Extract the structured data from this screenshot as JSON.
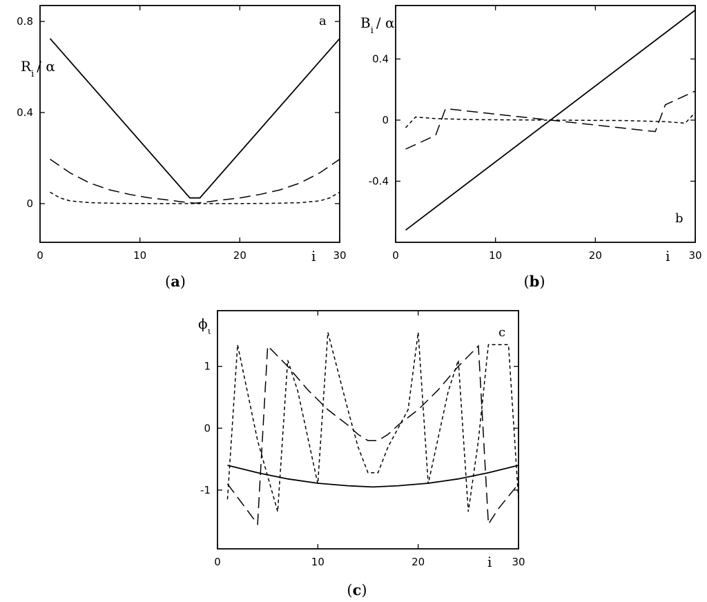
{
  "chart_data": [
    {
      "type": "line",
      "panel": "a",
      "caption": "(a)",
      "corner_label": "a",
      "ylabel": "R / α",
      "ylabel_sub": "i",
      "xlabel": "i",
      "xlim": [
        0,
        30
      ],
      "ylim": [
        -0.17,
        0.87
      ],
      "xticks": [
        0,
        10,
        20,
        30
      ],
      "xtick_labels": [
        "0",
        "10",
        "20",
        "30"
      ],
      "yticks": [
        0,
        0.4,
        0.8
      ],
      "ytick_labels": [
        "0",
        "0.4",
        "0.8"
      ],
      "series": [
        {
          "style": "solid",
          "x": [
            1,
            15,
            16,
            30
          ],
          "y": [
            0.725,
            0.025,
            0.025,
            0.725
          ]
        },
        {
          "style": "long-dash",
          "x": [
            1,
            3,
            5,
            7,
            9,
            11,
            13,
            14,
            15,
            15.5,
            16,
            17,
            18,
            20,
            22,
            24,
            26,
            28,
            30
          ],
          "y": [
            0.195,
            0.135,
            0.09,
            0.06,
            0.04,
            0.025,
            0.015,
            0.009,
            0.004,
            0.002,
            0.004,
            0.009,
            0.015,
            0.025,
            0.04,
            0.06,
            0.09,
            0.135,
            0.195
          ]
        },
        {
          "style": "short-dash",
          "x": [
            1,
            2,
            3,
            5,
            8,
            12,
            15.5,
            19,
            23,
            26,
            28,
            29,
            30
          ],
          "y": [
            0.05,
            0.025,
            0.012,
            0.004,
            0.001,
            0.0,
            0.0,
            0.0,
            0.001,
            0.004,
            0.012,
            0.025,
            0.05
          ]
        }
      ]
    },
    {
      "type": "line",
      "panel": "b",
      "caption": "(b)",
      "corner_label": "b",
      "ylabel": "B / α",
      "ylabel_sub": "i",
      "xlabel": "i",
      "xlim": [
        0,
        30
      ],
      "ylim": [
        -0.8,
        0.75
      ],
      "xticks": [
        0,
        10,
        20,
        30
      ],
      "xtick_labels": [
        "0",
        "10",
        "20",
        "30"
      ],
      "yticks": [
        -0.4,
        0,
        0.4
      ],
      "ytick_labels": [
        "-0.4",
        "0",
        "0.4"
      ],
      "series": [
        {
          "style": "solid",
          "x": [
            1,
            30
          ],
          "y": [
            -0.72,
            0.72
          ]
        },
        {
          "style": "long-dash",
          "x": [
            1,
            4,
            5,
            26,
            27,
            30
          ],
          "y": [
            -0.19,
            -0.1,
            0.075,
            -0.075,
            0.1,
            0.19
          ]
        },
        {
          "style": "short-dash",
          "x": [
            1,
            2,
            4,
            8,
            15.5,
            23,
            27,
            29,
            30
          ],
          "y": [
            -0.05,
            0.02,
            0.01,
            0.003,
            0.0,
            -0.003,
            -0.01,
            -0.02,
            0.05
          ]
        }
      ]
    },
    {
      "type": "line",
      "panel": "c",
      "caption": "(c)",
      "corner_label": "c",
      "ylabel": "ϕ",
      "ylabel_sub": "ι",
      "xlabel": "i",
      "xlim": [
        0,
        30
      ],
      "ylim": [
        -1.95,
        1.9
      ],
      "xticks": [
        0,
        10,
        20,
        30
      ],
      "xtick_labels": [
        "0",
        "10",
        "20",
        "30"
      ],
      "yticks": [
        -1,
        0,
        1
      ],
      "ytick_labels": [
        "-1",
        "0",
        "1"
      ],
      "series": [
        {
          "style": "solid",
          "x": [
            1,
            4,
            7,
            10,
            13,
            15.5,
            18,
            21,
            24,
            27,
            30
          ],
          "y": [
            -0.6,
            -0.72,
            -0.82,
            -0.89,
            -0.93,
            -0.95,
            -0.93,
            -0.89,
            -0.82,
            -0.72,
            -0.6
          ]
        },
        {
          "style": "long-dash",
          "x": [
            1,
            4,
            5,
            7,
            9,
            11,
            13,
            14,
            15,
            16,
            17,
            18,
            20,
            22,
            24,
            26,
            27,
            28,
            30
          ],
          "y": [
            -0.9,
            -1.55,
            1.33,
            1.0,
            0.62,
            0.3,
            0.05,
            -0.1,
            -0.2,
            -0.2,
            -0.1,
            0.05,
            0.3,
            0.62,
            1.0,
            1.33,
            -1.55,
            -1.3,
            -0.9
          ]
        },
        {
          "style": "short-dash",
          "x": [
            1,
            2,
            4,
            6,
            7,
            8,
            10,
            11,
            13,
            14,
            15,
            16,
            17,
            19,
            20,
            21,
            23,
            24,
            25,
            26,
            27,
            29,
            30
          ],
          "y": [
            -1.15,
            1.35,
            -0.2,
            -1.35,
            1.1,
            0.6,
            -0.9,
            1.55,
            0.3,
            -0.3,
            -0.72,
            -0.72,
            -0.3,
            0.3,
            1.55,
            -0.9,
            0.6,
            1.1,
            -1.35,
            -0.2,
            1.35,
            1.35,
            -1.15
          ]
        }
      ]
    }
  ]
}
